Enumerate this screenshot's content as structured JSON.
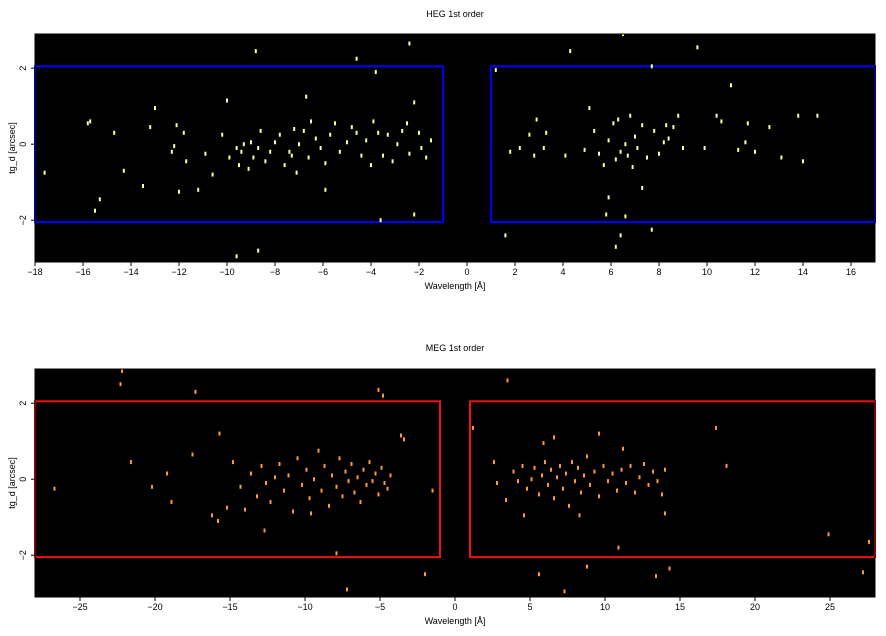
{
  "chart_data": [
    {
      "type": "scatter",
      "title": "HEG 1st order",
      "xlabel": "Wavelength [Å]",
      "ylabel": "tg_d [arcsec]",
      "xlim": [
        -18,
        17
      ],
      "ylim": [
        -3.1,
        2.9
      ],
      "xticks": [
        -18,
        -16,
        -14,
        -12,
        -10,
        -8,
        -6,
        -4,
        -2,
        0,
        2,
        4,
        6,
        8,
        10,
        12,
        14,
        16
      ],
      "xtick_labels": [
        "−18",
        "−16",
        "−14",
        "−12",
        "−10",
        "−8",
        "−6",
        "−4",
        "−2",
        "0",
        "2",
        "4",
        "6",
        "8",
        "10",
        "12",
        "14",
        "16"
      ],
      "yticks": [
        -2,
        0,
        2
      ],
      "ytick_labels": [
        "−2",
        "0",
        "2"
      ],
      "background": "#000000",
      "point_color": "#ffff99",
      "region_color": "#0000ff",
      "regions": [
        {
          "x": [
            -18,
            -1
          ],
          "y": [
            -2.05,
            2.05
          ]
        },
        {
          "x": [
            1,
            17
          ],
          "y": [
            -2.05,
            2.05
          ]
        }
      ],
      "points": [
        [
          -17.6,
          -0.75
        ],
        [
          -15.8,
          0.55
        ],
        [
          -15.7,
          0.6
        ],
        [
          -15.5,
          -1.75
        ],
        [
          -15.3,
          -1.45
        ],
        [
          -14.7,
          0.3
        ],
        [
          -14.3,
          -0.7
        ],
        [
          -13.5,
          -1.1
        ],
        [
          -13.2,
          0.45
        ],
        [
          -13.0,
          0.95
        ],
        [
          -12.3,
          -0.2
        ],
        [
          -12.2,
          -0.05
        ],
        [
          -12.1,
          0.5
        ],
        [
          -12.0,
          -1.25
        ],
        [
          -11.8,
          0.3
        ],
        [
          -11.7,
          -0.45
        ],
        [
          -11.2,
          -1.2
        ],
        [
          -10.9,
          -0.25
        ],
        [
          -10.6,
          -0.8
        ],
        [
          -10.2,
          0.25
        ],
        [
          -10.0,
          1.15
        ],
        [
          -9.9,
          -0.35
        ],
        [
          -9.6,
          -0.1
        ],
        [
          -9.5,
          -0.55
        ],
        [
          -9.4,
          -0.2
        ],
        [
          -9.3,
          0.0
        ],
        [
          -9.1,
          -0.65
        ],
        [
          -9.0,
          0.05
        ],
        [
          -8.9,
          -0.35
        ],
        [
          -8.7,
          -0.1
        ],
        [
          -8.6,
          0.35
        ],
        [
          -8.4,
          -0.45
        ],
        [
          -8.2,
          -0.2
        ],
        [
          -8.0,
          0.05
        ],
        [
          -7.8,
          0.25
        ],
        [
          -7.6,
          -0.55
        ],
        [
          -7.4,
          -0.2
        ],
        [
          -7.2,
          0.4
        ],
        [
          -7.1,
          -0.75
        ],
        [
          -7.0,
          0.0
        ],
        [
          -6.8,
          0.35
        ],
        [
          -6.7,
          1.25
        ],
        [
          -6.6,
          -0.35
        ],
        [
          -6.5,
          0.6
        ],
        [
          -6.3,
          0.15
        ],
        [
          -6.1,
          -0.1
        ],
        [
          -5.9,
          -0.5
        ],
        [
          -5.7,
          0.25
        ],
        [
          -5.5,
          0.55
        ],
        [
          -5.3,
          -0.2
        ],
        [
          -5.0,
          0.05
        ],
        [
          -4.8,
          0.45
        ],
        [
          -4.6,
          0.3
        ],
        [
          -4.4,
          -0.3
        ],
        [
          -4.2,
          0.1
        ],
        [
          -4.0,
          -0.55
        ],
        [
          -3.9,
          0.6
        ],
        [
          -3.7,
          0.3
        ],
        [
          -3.5,
          -0.3
        ],
        [
          -3.3,
          0.25
        ],
        [
          -3.1,
          -0.45
        ],
        [
          -2.9,
          0.0
        ],
        [
          -2.7,
          0.35
        ],
        [
          -2.5,
          0.55
        ],
        [
          -2.4,
          -0.25
        ],
        [
          -2.2,
          1.1
        ],
        [
          -2.0,
          0.3
        ],
        [
          -1.9,
          -0.1
        ],
        [
          -1.7,
          -0.35
        ],
        [
          -1.5,
          0.1
        ],
        [
          -8.8,
          2.45
        ],
        [
          -4.6,
          2.25
        ],
        [
          -3.8,
          1.9
        ],
        [
          -2.4,
          2.65
        ],
        [
          -9.6,
          -2.95
        ],
        [
          -8.7,
          -2.8
        ],
        [
          -3.6,
          -2.0
        ],
        [
          -2.2,
          -1.85
        ],
        [
          -5.9,
          -1.2
        ],
        [
          -7.3,
          -0.3
        ],
        [
          1.2,
          1.95
        ],
        [
          1.6,
          -2.4
        ],
        [
          1.8,
          -0.2
        ],
        [
          2.2,
          -0.1
        ],
        [
          2.6,
          0.25
        ],
        [
          2.8,
          -0.3
        ],
        [
          2.9,
          0.65
        ],
        [
          3.2,
          -0.1
        ],
        [
          3.3,
          0.3
        ],
        [
          4.1,
          -0.3
        ],
        [
          4.3,
          2.45
        ],
        [
          4.9,
          -0.15
        ],
        [
          5.1,
          0.95
        ],
        [
          5.3,
          0.35
        ],
        [
          5.5,
          -0.25
        ],
        [
          5.7,
          -0.55
        ],
        [
          5.9,
          -1.4
        ],
        [
          5.9,
          0.1
        ],
        [
          6.1,
          0.55
        ],
        [
          6.2,
          -0.4
        ],
        [
          6.3,
          0.65
        ],
        [
          6.4,
          -0.2
        ],
        [
          6.5,
          2.9
        ],
        [
          6.6,
          0.0
        ],
        [
          6.7,
          -0.3
        ],
        [
          6.8,
          0.75
        ],
        [
          6.9,
          -0.6
        ],
        [
          7.0,
          0.2
        ],
        [
          7.1,
          -0.1
        ],
        [
          7.3,
          0.5
        ],
        [
          7.5,
          -0.35
        ],
        [
          7.7,
          2.05
        ],
        [
          7.8,
          0.35
        ],
        [
          8.0,
          -0.25
        ],
        [
          8.2,
          0.05
        ],
        [
          8.4,
          0.15
        ],
        [
          8.6,
          0.45
        ],
        [
          8.8,
          0.75
        ],
        [
          9.0,
          -0.1
        ],
        [
          9.6,
          2.55
        ],
        [
          9.9,
          -0.1
        ],
        [
          10.4,
          0.75
        ],
        [
          10.6,
          0.6
        ],
        [
          11.0,
          1.55
        ],
        [
          11.3,
          -0.15
        ],
        [
          11.7,
          0.55
        ],
        [
          12.0,
          -0.2
        ],
        [
          12.6,
          0.45
        ],
        [
          13.1,
          -0.35
        ],
        [
          13.8,
          0.75
        ],
        [
          14.0,
          -0.45
        ],
        [
          14.6,
          0.75
        ],
        [
          6.4,
          -2.4
        ],
        [
          6.2,
          -2.7
        ],
        [
          7.7,
          -2.25
        ],
        [
          5.8,
          -1.85
        ],
        [
          6.6,
          -1.9
        ],
        [
          7.3,
          -1.15
        ],
        [
          11.6,
          0.05
        ],
        [
          8.3,
          0.5
        ]
      ]
    },
    {
      "type": "scatter",
      "title": "MEG 1st order",
      "xlabel": "Wavelength [Å]",
      "ylabel": "tg_d [arcsec]",
      "xlim": [
        -28,
        28
      ],
      "ylim": [
        -3.1,
        2.9
      ],
      "xticks": [
        -25,
        -20,
        -15,
        -10,
        -5,
        0,
        5,
        10,
        15,
        20,
        25
      ],
      "xtick_labels": [
        "−25",
        "−20",
        "−15",
        "−10",
        "−5",
        "0",
        "5",
        "10",
        "15",
        "20",
        "25"
      ],
      "yticks": [
        -2,
        0,
        2
      ],
      "ytick_labels": [
        "−2",
        "0",
        "2"
      ],
      "background": "#000000",
      "point_color": "#ff9933",
      "region_color": "#ee1111",
      "regions": [
        {
          "x": [
            -28,
            -1
          ],
          "y": [
            -2.05,
            2.05
          ]
        },
        {
          "x": [
            1,
            28
          ],
          "y": [
            -2.05,
            2.05
          ]
        }
      ],
      "points": [
        [
          -26.7,
          -0.25
        ],
        [
          -22.2,
          2.85
        ],
        [
          -22.3,
          2.5
        ],
        [
          -21.6,
          0.45
        ],
        [
          -20.2,
          -0.2
        ],
        [
          -19.2,
          0.15
        ],
        [
          -18.9,
          -0.6
        ],
        [
          -17.3,
          2.3
        ],
        [
          -17.5,
          0.65
        ],
        [
          -16.2,
          -0.95
        ],
        [
          -15.8,
          -1.1
        ],
        [
          -15.2,
          -0.75
        ],
        [
          -14.8,
          0.45
        ],
        [
          -14.3,
          -0.2
        ],
        [
          -14.0,
          -0.8
        ],
        [
          -13.6,
          0.15
        ],
        [
          -13.2,
          -0.45
        ],
        [
          -12.9,
          0.35
        ],
        [
          -12.6,
          -0.1
        ],
        [
          -12.3,
          -0.6
        ],
        [
          -12.0,
          0.05
        ],
        [
          -11.7,
          0.4
        ],
        [
          -11.4,
          -0.3
        ],
        [
          -11.1,
          0.1
        ],
        [
          -10.8,
          -0.85
        ],
        [
          -10.5,
          0.55
        ],
        [
          -10.2,
          -0.15
        ],
        [
          -9.9,
          0.25
        ],
        [
          -9.7,
          -0.5
        ],
        [
          -9.4,
          0.0
        ],
        [
          -9.1,
          0.75
        ],
        [
          -8.9,
          -0.3
        ],
        [
          -8.7,
          0.35
        ],
        [
          -8.4,
          -0.7
        ],
        [
          -8.2,
          0.1
        ],
        [
          -7.9,
          -0.2
        ],
        [
          -7.7,
          0.55
        ],
        [
          -7.5,
          -0.45
        ],
        [
          -7.3,
          0.2
        ],
        [
          -7.1,
          -0.05
        ],
        [
          -6.9,
          0.4
        ],
        [
          -6.7,
          -0.35
        ],
        [
          -6.5,
          0.05
        ],
        [
          -6.3,
          -0.6
        ],
        [
          -6.1,
          0.25
        ],
        [
          -5.9,
          -0.15
        ],
        [
          -5.7,
          0.45
        ],
        [
          -5.5,
          -0.05
        ],
        [
          -5.3,
          0.15
        ],
        [
          -5.1,
          -0.4
        ],
        [
          -4.9,
          0.3
        ],
        [
          -4.7,
          -0.1
        ],
        [
          -4.5,
          -0.25
        ],
        [
          -4.3,
          0.1
        ],
        [
          -3.6,
          1.15
        ],
        [
          -3.4,
          1.05
        ],
        [
          -5.1,
          2.35
        ],
        [
          -4.8,
          2.2
        ],
        [
          -7.9,
          -1.95
        ],
        [
          -7.2,
          -2.9
        ],
        [
          -1.5,
          -0.3
        ],
        [
          -2.0,
          -2.5
        ],
        [
          -15.7,
          1.2
        ],
        [
          -12.7,
          -1.35
        ],
        [
          -9.6,
          -0.9
        ],
        [
          1.2,
          1.35
        ],
        [
          3.5,
          2.6
        ],
        [
          2.6,
          0.45
        ],
        [
          2.8,
          -0.1
        ],
        [
          3.4,
          -0.55
        ],
        [
          3.9,
          0.2
        ],
        [
          4.2,
          -0.05
        ],
        [
          4.5,
          0.35
        ],
        [
          4.8,
          -0.25
        ],
        [
          5.1,
          0.0
        ],
        [
          5.3,
          0.3
        ],
        [
          5.6,
          -0.4
        ],
        [
          5.8,
          0.1
        ],
        [
          6.0,
          0.45
        ],
        [
          6.2,
          -0.15
        ],
        [
          6.4,
          0.25
        ],
        [
          6.6,
          -0.5
        ],
        [
          6.8,
          0.05
        ],
        [
          7.0,
          0.35
        ],
        [
          7.2,
          -0.25
        ],
        [
          7.4,
          0.15
        ],
        [
          7.6,
          -0.7
        ],
        [
          7.8,
          0.45
        ],
        [
          8.0,
          -0.05
        ],
        [
          8.2,
          0.3
        ],
        [
          8.4,
          -0.35
        ],
        [
          8.6,
          0.1
        ],
        [
          8.8,
          0.6
        ],
        [
          9.0,
          -0.15
        ],
        [
          9.3,
          0.2
        ],
        [
          9.6,
          -0.45
        ],
        [
          9.9,
          0.35
        ],
        [
          10.2,
          -0.05
        ],
        [
          10.5,
          0.15
        ],
        [
          10.8,
          -0.3
        ],
        [
          11.1,
          0.25
        ],
        [
          11.4,
          -0.1
        ],
        [
          11.7,
          0.35
        ],
        [
          12.0,
          -0.35
        ],
        [
          12.3,
          0.05
        ],
        [
          12.6,
          0.4
        ],
        [
          12.9,
          -0.15
        ],
        [
          13.2,
          0.2
        ],
        [
          13.5,
          -0.05
        ],
        [
          13.8,
          -0.4
        ],
        [
          14.0,
          0.25
        ],
        [
          4.6,
          -0.95
        ],
        [
          6.6,
          1.1
        ],
        [
          9.6,
          1.2
        ],
        [
          17.4,
          1.35
        ],
        [
          18.1,
          0.35
        ],
        [
          13.4,
          -2.55
        ],
        [
          14.3,
          -2.35
        ],
        [
          10.9,
          -1.8
        ],
        [
          8.8,
          -2.3
        ],
        [
          5.6,
          -2.5
        ],
        [
          7.3,
          -2.95
        ],
        [
          14.0,
          -0.9
        ],
        [
          24.9,
          -1.45
        ],
        [
          27.6,
          -1.65
        ],
        [
          27.2,
          -2.45
        ],
        [
          5.9,
          0.95
        ],
        [
          8.3,
          -0.95
        ],
        [
          11.2,
          0.8
        ]
      ]
    }
  ]
}
